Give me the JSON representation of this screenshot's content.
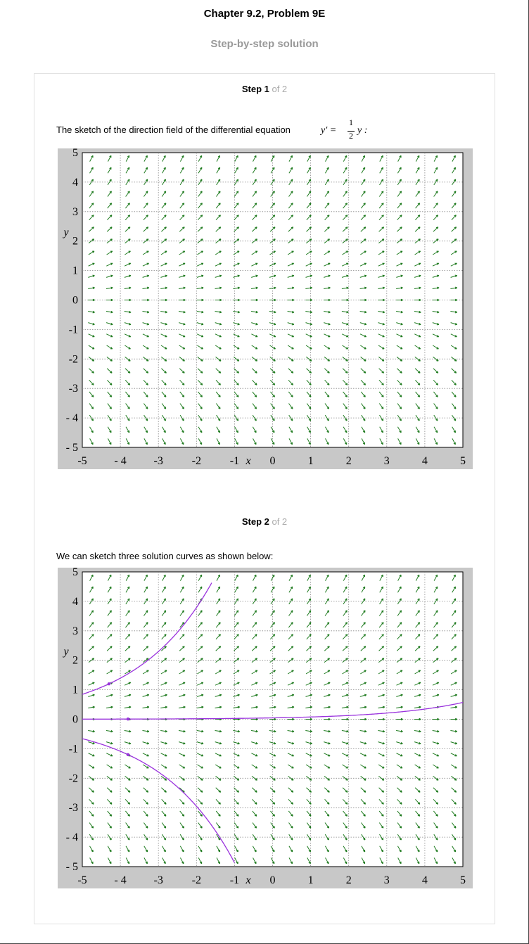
{
  "header": {
    "chapter_title": "Chapter 9.2, Problem 9E",
    "subtitle": "Step-by-step solution"
  },
  "steps": [
    {
      "step_word": "Step 1",
      "of_text": " of 2",
      "text": "The sketch of the direction field of the differential equation",
      "equation": {
        "lhs": "y′ =",
        "numerator": "1",
        "denominator": "2",
        "rhs": "y :"
      }
    },
    {
      "step_word": "Step 2",
      "of_text": " of 2",
      "text": "We can sketch three solution curves as shown below:"
    }
  ],
  "chart_data": [
    {
      "type": "direction_field",
      "equation": "y' = (1/2) y",
      "xlabel": "x",
      "ylabel": "y",
      "xlim": [
        -5,
        5
      ],
      "ylim": [
        -5,
        5
      ],
      "x_ticks": [
        -5,
        -4,
        -3,
        -2,
        -1,
        0,
        1,
        2,
        3,
        4,
        5
      ],
      "y_ticks": [
        -5,
        -4,
        -3,
        -2,
        -1,
        0,
        1,
        2,
        3,
        4,
        5
      ],
      "x_tick_labels": [
        "-5",
        "- 4",
        "-3",
        "-2",
        "-1",
        "0",
        "1",
        "2",
        "3",
        "4",
        "5"
      ],
      "y_tick_labels": [
        "- 5",
        "- 4",
        "-3",
        "-2",
        "-1",
        "0",
        "1",
        "2",
        "3",
        "4",
        "5"
      ],
      "grid": true,
      "arrow_color": "#1e7a1e",
      "grid_color": "#888888",
      "frame_background": "#c8c8c8",
      "arrow_grid": {
        "nx": 21,
        "ny": 25
      },
      "solution_curves": []
    },
    {
      "type": "direction_field",
      "equation": "y' = (1/2) y",
      "xlabel": "x",
      "ylabel": "y",
      "xlim": [
        -5,
        5
      ],
      "ylim": [
        -5,
        5
      ],
      "x_ticks": [
        -5,
        -4,
        -3,
        -2,
        -1,
        0,
        1,
        2,
        3,
        4,
        5
      ],
      "y_ticks": [
        -5,
        -4,
        -3,
        -2,
        -1,
        0,
        1,
        2,
        3,
        4,
        5
      ],
      "x_tick_labels": [
        "-5",
        "- 4",
        "-3",
        "-2",
        "-1",
        "0",
        "1",
        "2",
        "3",
        "4",
        "5"
      ],
      "y_tick_labels": [
        "- 5",
        "- 4",
        "-3",
        "-2",
        "-1",
        "0",
        "1",
        "2",
        "3",
        "4",
        "5"
      ],
      "grid": true,
      "arrow_color": "#1e7a1e",
      "grid_color": "#888888",
      "frame_background": "#c8c8c8",
      "curve_color": "#9a33dd",
      "arrow_grid": {
        "nx": 21,
        "ny": 25
      },
      "solution_curves": [
        {
          "initial_point": [
            -4.3,
            1.2
          ],
          "x_range": [
            -5,
            -1.6
          ]
        },
        {
          "initial_point": [
            -3.8,
            0.007
          ],
          "x_range": [
            -5,
            5
          ]
        },
        {
          "initial_point": [
            -3.8,
            -1.2
          ],
          "x_range": [
            -5,
            -1.0
          ]
        }
      ]
    }
  ]
}
